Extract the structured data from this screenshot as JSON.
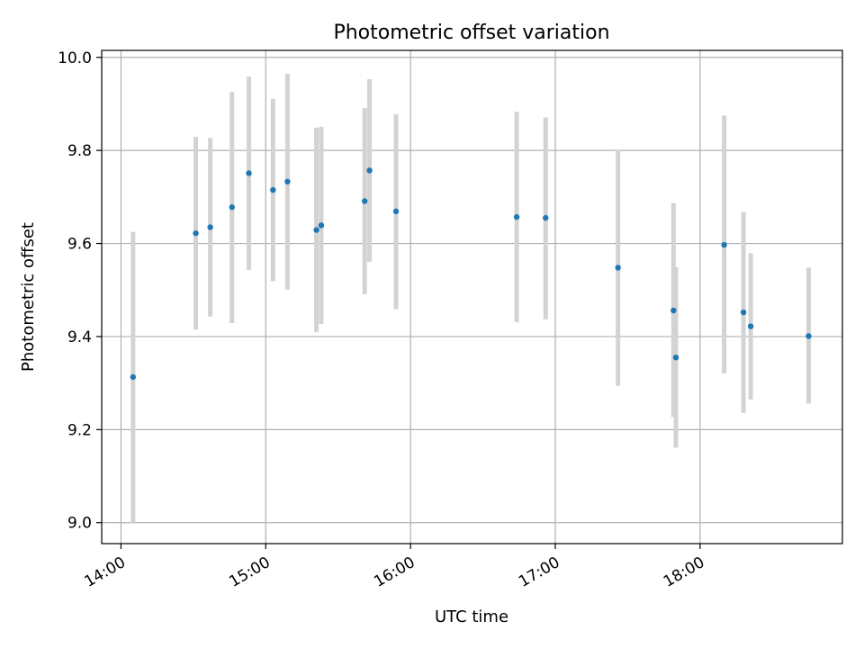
{
  "chart_data": {
    "type": "scatter",
    "title": "Photometric offset variation",
    "xlabel": "UTC time",
    "ylabel": "Photometric offset",
    "x_tick_labels": [
      "14:00",
      "15:00",
      "16:00",
      "17:00",
      "18:00"
    ],
    "x_ticks": [
      "14:00",
      "15:00",
      "16:00",
      "17:00",
      "18:00"
    ],
    "xlim": [
      "13:52",
      "18:59"
    ],
    "ylim": [
      8.955,
      10.015
    ],
    "y_ticks": [
      9.0,
      9.2,
      9.4,
      9.6,
      9.8,
      10.0
    ],
    "y_tick_labels": [
      "9.0",
      "9.2",
      "9.4",
      "9.6",
      "9.8",
      "10.0"
    ],
    "grid": true,
    "marker_color": "#1f77b4",
    "errorbar_color": "#d3d3d3",
    "points": [
      {
        "x": "14:05",
        "y": 9.313,
        "ylow": 9.0,
        "yhigh": 9.625
      },
      {
        "x": "14:31",
        "y": 9.622,
        "ylow": 9.415,
        "yhigh": 9.829
      },
      {
        "x": "14:37",
        "y": 9.635,
        "ylow": 9.443,
        "yhigh": 9.827
      },
      {
        "x": "14:46",
        "y": 9.678,
        "ylow": 9.429,
        "yhigh": 9.926
      },
      {
        "x": "14:53",
        "y": 9.751,
        "ylow": 9.543,
        "yhigh": 9.959
      },
      {
        "x": "15:03",
        "y": 9.715,
        "ylow": 9.519,
        "yhigh": 9.911
      },
      {
        "x": "15:09",
        "y": 9.733,
        "ylow": 9.501,
        "yhigh": 9.965
      },
      {
        "x": "15:21",
        "y": 9.629,
        "ylow": 9.409,
        "yhigh": 9.849
      },
      {
        "x": "15:23",
        "y": 9.639,
        "ylow": 9.427,
        "yhigh": 9.851
      },
      {
        "x": "15:41",
        "y": 9.691,
        "ylow": 9.491,
        "yhigh": 9.891
      },
      {
        "x": "15:43",
        "y": 9.757,
        "ylow": 9.561,
        "yhigh": 9.953
      },
      {
        "x": "15:54",
        "y": 9.669,
        "ylow": 9.459,
        "yhigh": 9.878
      },
      {
        "x": "16:44",
        "y": 9.657,
        "ylow": 9.431,
        "yhigh": 9.883
      },
      {
        "x": "16:56",
        "y": 9.655,
        "ylow": 9.437,
        "yhigh": 9.871
      },
      {
        "x": "17:26",
        "y": 9.548,
        "ylow": 9.294,
        "yhigh": 9.801
      },
      {
        "x": "17:49",
        "y": 9.456,
        "ylow": 9.227,
        "yhigh": 9.687
      },
      {
        "x": "17:50",
        "y": 9.355,
        "ylow": 9.161,
        "yhigh": 9.549
      },
      {
        "x": "18:10",
        "y": 9.597,
        "ylow": 9.321,
        "yhigh": 9.875
      },
      {
        "x": "18:18",
        "y": 9.452,
        "ylow": 9.236,
        "yhigh": 9.668
      },
      {
        "x": "18:21",
        "y": 9.422,
        "ylow": 9.265,
        "yhigh": 9.579
      },
      {
        "x": "18:45",
        "y": 9.401,
        "ylow": 9.256,
        "yhigh": 9.548
      }
    ]
  }
}
